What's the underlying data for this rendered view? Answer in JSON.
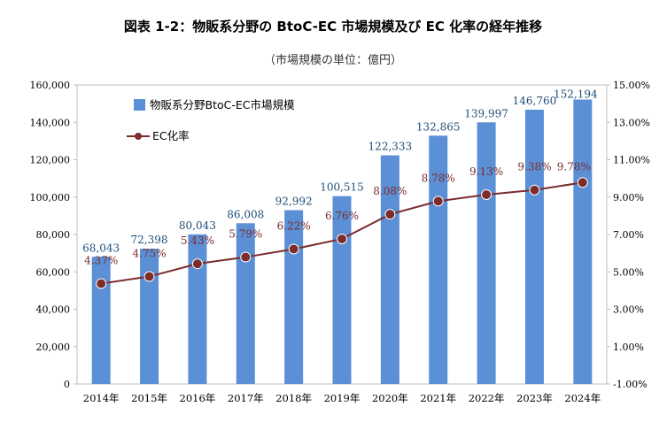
{
  "title": "図表 1-2：物販系分野の BtoC-EC 市場規模及び EC 化率の経年推移",
  "subtitle": "（市場規模の単位：億円）",
  "chart_data": {
    "type": "bar",
    "title": "図表 1-2：物販系分野の BtoC-EC 市場規模及び EC 化率の経年推移",
    "subtitle": "（市場規模の単位：億円）",
    "categories": [
      "2014年",
      "2015年",
      "2016年",
      "2017年",
      "2018年",
      "2019年",
      "2020年",
      "2021年",
      "2022年",
      "2023年",
      "2024年"
    ],
    "series": [
      {
        "name": "物販系分野BtoC-EC市場規模",
        "type": "bar",
        "axis": "left",
        "values": [
          68043,
          72398,
          80043,
          86008,
          92992,
          100515,
          122333,
          132865,
          139997,
          146760,
          152194
        ],
        "labels": [
          "68,043",
          "72,398",
          "80,043",
          "86,008",
          "92,992",
          "100,515",
          "122,333",
          "132,865",
          "139,997",
          "146,760",
          "152,194"
        ],
        "color": "#5b8fd6"
      },
      {
        "name": "EC化率",
        "type": "line",
        "axis": "right",
        "values": [
          4.37,
          4.75,
          5.43,
          5.79,
          6.22,
          6.76,
          8.08,
          8.78,
          9.13,
          9.38,
          9.78
        ],
        "labels": [
          "4.37%",
          "4.75%",
          "5.43%",
          "5.79%",
          "6.22%",
          "6.76%",
          "8.08%",
          "8.78%",
          "9.13%",
          "9.38%",
          "9.78%"
        ],
        "color": "#7b2c2c"
      }
    ],
    "y_left": {
      "ylim": [
        0,
        160000
      ],
      "ticks": [
        0,
        20000,
        40000,
        60000,
        80000,
        100000,
        120000,
        140000,
        160000
      ],
      "tick_labels": [
        "0",
        "20,000",
        "40,000",
        "60,000",
        "80,000",
        "100,000",
        "120,000",
        "140,000",
        "160,000"
      ]
    },
    "y_right": {
      "ylim": [
        -1,
        15
      ],
      "ticks": [
        -1,
        1,
        3,
        5,
        7,
        9,
        11,
        13,
        15
      ],
      "tick_labels": [
        "-1.00%",
        "1.00%",
        "3.00%",
        "5.00%",
        "7.00%",
        "9.00%",
        "11.00%",
        "13.00%",
        "15.00%"
      ]
    },
    "grid": false,
    "legend": "top-left"
  }
}
